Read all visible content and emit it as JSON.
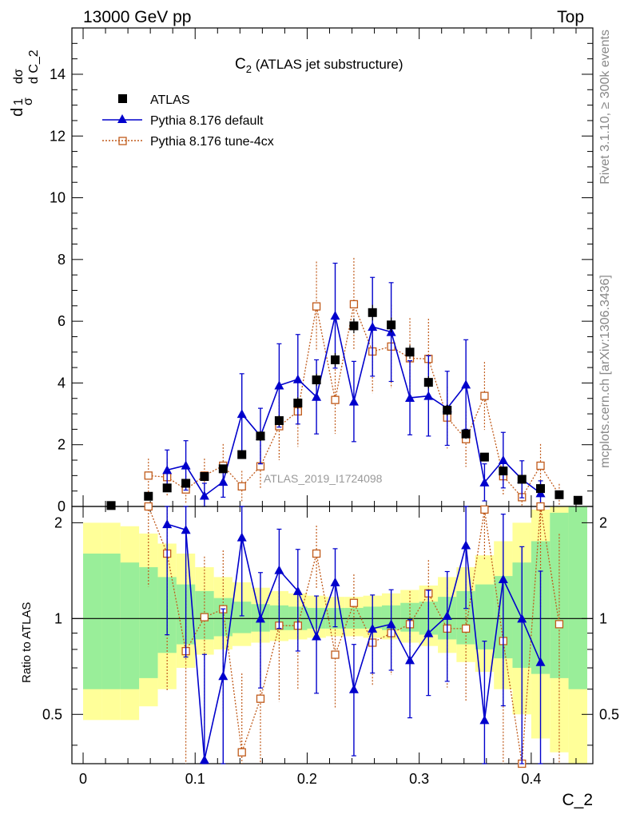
{
  "header": {
    "left": "13000 GeV pp",
    "right": "Top"
  },
  "side_labels": {
    "rivet": "Rivet 3.1.10, ≥ 300k events",
    "mcplots": "mcplots.cern.ch [arXiv:1306.3436]"
  },
  "chart_data": {
    "type": "scatter",
    "title": "C_2 (ATLAS jet substructure)",
    "title_main": "C",
    "title_sub": "2",
    "title_rest": " (ATLAS jet substructure)",
    "watermark": "ATLAS_2019_I1724098",
    "xlabel": "C_2",
    "ylabel": "1/σ dσ/d C_2",
    "ylabel_parts": {
      "d": "d",
      "one": "1",
      "sigma": "σ",
      "dsigma": "dσ",
      "dc2": "d C_2"
    },
    "ratio_ylabel": "Ratio to ATLAS",
    "xlim": [
      -0.01,
      0.455
    ],
    "ylim": [
      0,
      15.5
    ],
    "ratio_ylim": [
      0.35,
      2.25
    ],
    "x_ticks": [
      0,
      0.1,
      0.2,
      0.3,
      0.4
    ],
    "x_tick_labels": [
      "0",
      "0.1",
      "0.2",
      "0.3",
      "0.4"
    ],
    "y_ticks": [
      0,
      2,
      4,
      6,
      8,
      10,
      12,
      14
    ],
    "y_tick_labels": [
      "0",
      "2",
      "4",
      "6",
      "8",
      "10",
      "12",
      "14"
    ],
    "ratio_ticks": [
      0.5,
      1,
      2
    ],
    "ratio_tick_labels": [
      "0.5",
      "1",
      "2"
    ],
    "legend_position": "top-left",
    "legend": [
      "ATLAS",
      "Pythia 8.176 default",
      "Pythia 8.176 tune-4cx"
    ],
    "bins": [
      0.0,
      0.0167,
      0.0333,
      0.05,
      0.0667,
      0.0833,
      0.1,
      0.1167,
      0.1333,
      0.15,
      0.1667,
      0.1833,
      0.2,
      0.2167,
      0.2333,
      0.25,
      0.2667,
      0.2833,
      0.3,
      0.3167,
      0.3333,
      0.35,
      0.3667,
      0.3833,
      0.4,
      0.4167,
      0.4333,
      0.45
    ],
    "x": [
      0.025,
      0.0583,
      0.075,
      0.0917,
      0.1083,
      0.125,
      0.1417,
      0.1583,
      0.175,
      0.1917,
      0.2083,
      0.225,
      0.2417,
      0.2583,
      0.275,
      0.2917,
      0.3083,
      0.325,
      0.3417,
      0.3583,
      0.375,
      0.3917,
      0.4083,
      0.425,
      0.4417
    ],
    "series": [
      {
        "name": "ATLAS",
        "color": "#000000",
        "marker": "square",
        "values": [
          0.03,
          0.33,
          0.6,
          0.75,
          0.97,
          1.22,
          1.68,
          2.28,
          2.78,
          3.35,
          4.1,
          4.75,
          5.85,
          6.28,
          5.88,
          5.0,
          4.02,
          3.12,
          2.35,
          1.6,
          1.15,
          0.88,
          0.58,
          0.38,
          0.2
        ]
      },
      {
        "name": "Pythia 8.176 default",
        "color": "#0000cc",
        "marker": "triangle",
        "x": [
          0.075,
          0.0917,
          0.1083,
          0.125,
          0.1417,
          0.1583,
          0.175,
          0.1917,
          0.2083,
          0.225,
          0.2417,
          0.2583,
          0.275,
          0.2917,
          0.3083,
          0.325,
          0.3417,
          0.3583,
          0.375,
          0.3917,
          0.4083
        ],
        "values": [
          1.18,
          1.33,
          0.35,
          0.8,
          3.0,
          2.28,
          3.92,
          4.12,
          3.55,
          6.18,
          3.4,
          5.82,
          5.65,
          3.52,
          3.58,
          3.18,
          3.95,
          0.78,
          1.5,
          0.88,
          0.43
        ],
        "errors": [
          0.65,
          0.8,
          0.4,
          0.5,
          1.3,
          0.9,
          1.35,
          1.45,
          1.2,
          1.7,
          1.3,
          1.6,
          1.6,
          1.2,
          1.3,
          1.2,
          1.45,
          0.6,
          0.9,
          0.6,
          0.4
        ],
        "ratio": [
          1.98,
          1.9,
          0.36,
          0.66,
          1.8,
          1.0,
          1.42,
          1.22,
          0.88,
          1.3,
          0.6,
          0.93,
          0.96,
          0.74,
          0.9,
          1.02,
          1.7,
          0.48,
          1.33,
          1.0,
          0.73
        ]
      },
      {
        "name": "Pythia 8.176 tune-4cx",
        "color": "#c05a1a",
        "marker": "open-square",
        "x": [
          0.0583,
          0.075,
          0.0917,
          0.1083,
          0.125,
          0.1417,
          0.1583,
          0.175,
          0.1917,
          0.2083,
          0.225,
          0.2417,
          0.2583,
          0.275,
          0.2917,
          0.3083,
          0.325,
          0.3417,
          0.3583,
          0.375,
          0.3917,
          0.4083,
          0.425
        ],
        "values": [
          1.0,
          0.95,
          0.55,
          1.0,
          1.32,
          0.65,
          1.3,
          2.6,
          3.08,
          6.48,
          3.45,
          6.55,
          5.02,
          5.18,
          4.8,
          4.78,
          2.88,
          2.18,
          3.58,
          0.98,
          0.3,
          1.32,
          0.38
        ],
        "errors": [
          0.55,
          0.6,
          0.45,
          0.55,
          0.7,
          0.5,
          0.7,
          1.1,
          1.15,
          1.45,
          1.1,
          1.5,
          1.35,
          1.35,
          1.3,
          1.3,
          1.0,
          0.9,
          1.1,
          0.6,
          0.3,
          0.7,
          0.35
        ],
        "ratio": [
          2.8,
          1.6,
          0.79,
          1.01,
          1.07,
          0.38,
          0.56,
          0.95,
          0.95,
          1.6,
          0.77,
          1.12,
          0.84,
          0.9,
          0.96,
          1.2,
          0.93,
          0.93,
          2.2,
          0.85,
          0.3,
          2.3,
          0.96
        ]
      }
    ],
    "atlas_errors": [
      0.03,
      0.06,
      0.08,
      0.09,
      0.1,
      0.12,
      0.14,
      0.16,
      0.17,
      0.19,
      0.2,
      0.22,
      0.24,
      0.25,
      0.24,
      0.22,
      0.2,
      0.18,
      0.16,
      0.12,
      0.1,
      0.09,
      0.08,
      0.06,
      0.05
    ],
    "band_green": [
      [
        0.6,
        1.6
      ],
      [
        0.6,
        1.6
      ],
      [
        0.6,
        1.5
      ],
      [
        0.65,
        1.45
      ],
      [
        0.78,
        1.35
      ],
      [
        0.83,
        1.28
      ],
      [
        0.86,
        1.22
      ],
      [
        0.88,
        1.16
      ],
      [
        0.9,
        1.13
      ],
      [
        0.91,
        1.11
      ],
      [
        0.92,
        1.1
      ],
      [
        0.92,
        1.09
      ],
      [
        0.93,
        1.08
      ],
      [
        0.93,
        1.08
      ],
      [
        0.93,
        1.08
      ],
      [
        0.93,
        1.09
      ],
      [
        0.92,
        1.1
      ],
      [
        0.91,
        1.12
      ],
      [
        0.89,
        1.13
      ],
      [
        0.86,
        1.17
      ],
      [
        0.83,
        1.22
      ],
      [
        0.8,
        1.28
      ],
      [
        0.75,
        1.36
      ],
      [
        0.7,
        1.5
      ],
      [
        0.67,
        1.75
      ],
      [
        0.65,
        2.15
      ],
      [
        0.6,
        2.3
      ]
    ],
    "band_yellow": [
      [
        0.48,
        2.0
      ],
      [
        0.48,
        2.0
      ],
      [
        0.48,
        1.95
      ],
      [
        0.53,
        1.85
      ],
      [
        0.6,
        1.72
      ],
      [
        0.7,
        1.6
      ],
      [
        0.77,
        1.45
      ],
      [
        0.8,
        1.35
      ],
      [
        0.82,
        1.3
      ],
      [
        0.84,
        1.25
      ],
      [
        0.85,
        1.22
      ],
      [
        0.86,
        1.2
      ],
      [
        0.87,
        1.18
      ],
      [
        0.88,
        1.17
      ],
      [
        0.88,
        1.17
      ],
      [
        0.87,
        1.18
      ],
      [
        0.86,
        1.2
      ],
      [
        0.84,
        1.23
      ],
      [
        0.82,
        1.27
      ],
      [
        0.78,
        1.35
      ],
      [
        0.73,
        1.45
      ],
      [
        0.68,
        1.58
      ],
      [
        0.6,
        1.75
      ],
      [
        0.5,
        2.0
      ],
      [
        0.42,
        2.2
      ],
      [
        0.38,
        2.3
      ],
      [
        0.35,
        2.3
      ]
    ]
  }
}
